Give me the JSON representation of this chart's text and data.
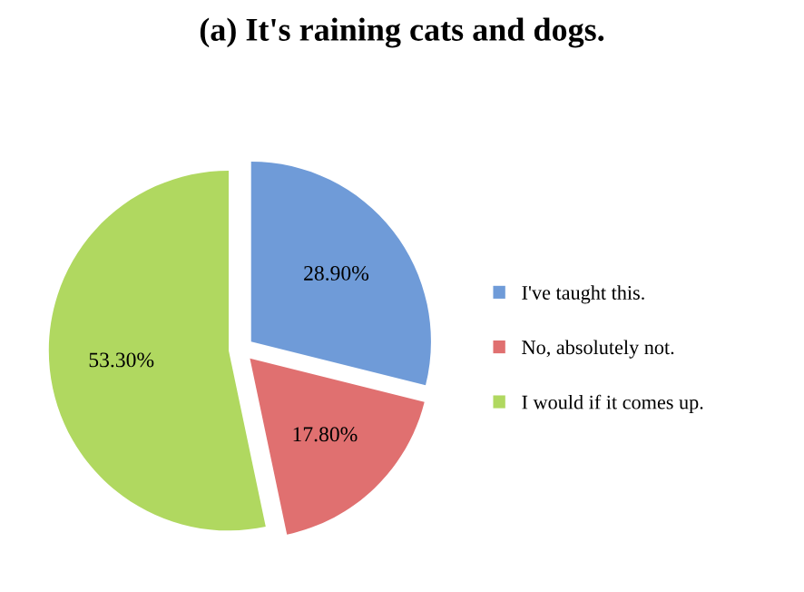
{
  "chart_data": {
    "type": "pie",
    "title": "(a) It's raining cats and dogs.",
    "categories": [
      "I've taught this.",
      "No, absolutely not.",
      "I would if it comes up."
    ],
    "values": [
      28.9,
      17.8,
      53.3
    ],
    "value_labels": [
      "28.90%",
      "17.80%",
      "53.30%"
    ],
    "colors": [
      "#6f9bd8",
      "#e07070",
      "#b0d860"
    ],
    "legend": "right"
  }
}
